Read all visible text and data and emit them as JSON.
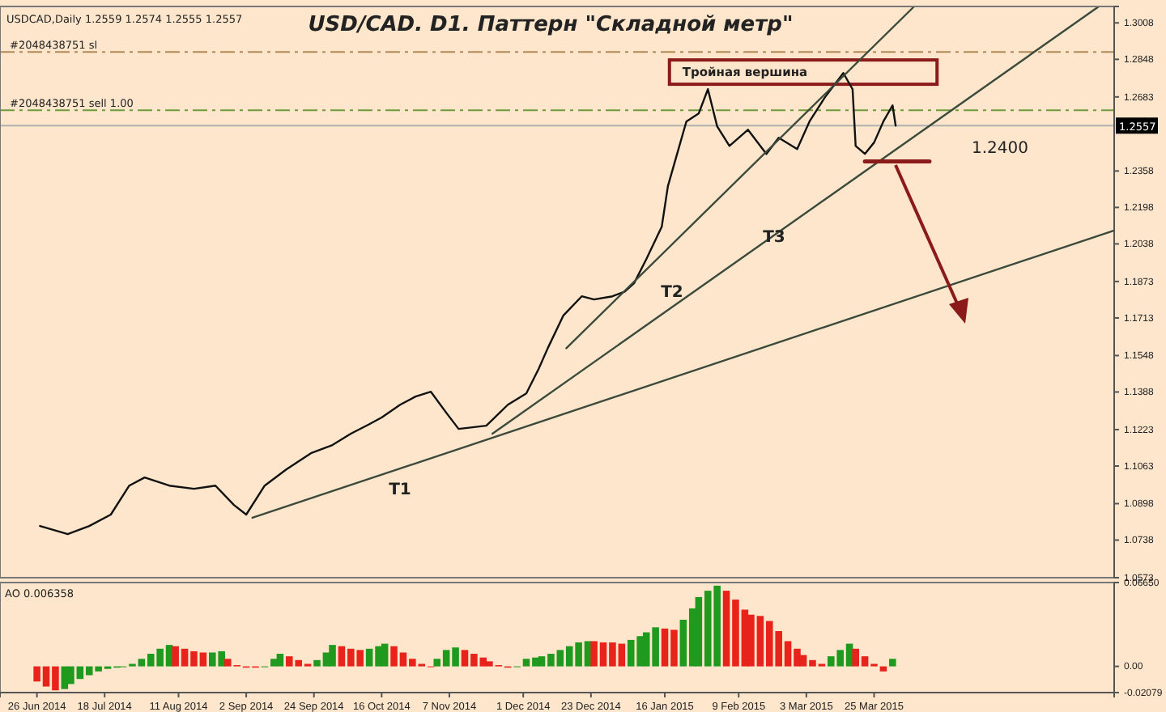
{
  "chart_data": [
    {
      "type": "line",
      "title": "USD/CAD. D1. Паттерн \"Складной метр\"",
      "annotations": [
        "USDCAD,Daily  1.2559 1.2574 1.2555 1.2557",
        "Тройная вершина",
        "T1",
        "T2",
        "T3",
        "1.2400"
      ],
      "xlim": [
        "2014-06-14",
        "2015-06-11"
      ],
      "ylim": [
        1.0573,
        1.308
      ],
      "yticks": [
        1.0573,
        1.0738,
        1.0898,
        1.1063,
        1.1223,
        1.1388,
        1.1548,
        1.1713,
        1.1873,
        1.2038,
        1.2198,
        1.2358,
        1.2683,
        1.2848,
        1.3008
      ],
      "tick_labels": "y",
      "grid": false,
      "ref_lines": [
        {
          "axis": "y",
          "value": 1.288,
          "label": "#2048438751 sl",
          "color": "#b08a5a",
          "line_style": "dashed"
        },
        {
          "axis": "y",
          "value": 1.2625,
          "label": "#2048438751 sell 1.00",
          "color": "#6f9a3c",
          "line_style": "dashed"
        },
        {
          "axis": "y",
          "value": 1.2557,
          "label": "1.2557",
          "color": "#b0b0b0"
        }
      ],
      "series": [
        {
          "color": "#111111",
          "x": [
            "2014-06-27",
            "2014-07-06",
            "2014-07-13",
            "2014-07-20",
            "2014-07-26",
            "2014-07-31",
            "2014-08-08",
            "2014-08-16",
            "2014-08-23",
            "2014-08-29",
            "2014-09-02",
            "2014-09-08",
            "2014-09-15",
            "2014-09-23",
            "2014-09-30",
            "2014-10-06",
            "2014-10-12",
            "2014-10-16",
            "2014-10-22",
            "2014-10-27",
            "2014-11-01",
            "2014-11-06",
            "2014-11-10",
            "2014-11-19",
            "2014-11-26",
            "2014-12-02",
            "2014-12-06",
            "2014-12-09",
            "2014-12-14",
            "2014-12-20",
            "2014-12-24",
            "2014-12-30",
            "2015-01-03",
            "2015-01-06",
            "2015-01-10",
            "2015-01-15",
            "2015-01-17",
            "2015-01-20",
            "2015-01-23",
            "2015-01-27",
            "2015-01-30",
            "2015-02-02",
            "2015-02-06",
            "2015-02-12",
            "2015-02-18",
            "2015-02-22",
            "2015-02-28",
            "2015-03-04",
            "2015-03-09",
            "2015-03-15",
            "2015-03-18",
            "2015-03-19",
            "2015-03-22",
            "2015-03-25",
            "2015-03-28",
            "2015-03-31",
            "2015-04-01"
          ],
          "values": [
            1.08,
            1.0764,
            1.08,
            1.085,
            1.0977,
            1.1013,
            1.0977,
            1.0963,
            1.0977,
            1.0892,
            1.085,
            1.0977,
            1.1048,
            1.1119,
            1.1155,
            1.1205,
            1.1247,
            1.1276,
            1.1332,
            1.1368,
            1.1389,
            1.1297,
            1.1226,
            1.124,
            1.1332,
            1.1382,
            1.1489,
            1.1581,
            1.1723,
            1.1808,
            1.1794,
            1.1808,
            1.1829,
            1.1865,
            1.1971,
            1.2113,
            1.2291,
            1.2433,
            1.2575,
            1.261,
            1.2717,
            1.2554,
            1.2468,
            1.2539,
            1.2433,
            1.2504,
            1.2454,
            1.2575,
            1.2681,
            1.2788,
            1.2717,
            1.2468,
            1.2433,
            1.2483,
            1.2575,
            1.2646,
            1.2557
          ]
        },
        {
          "color": "#3c4a3c",
          "x": [
            "2014-09-04",
            "2015-06-11"
          ],
          "values": [
            1.0836,
            1.2097
          ]
        },
        {
          "color": "#3c4a3c",
          "x": [
            "2014-11-21",
            "2015-06-06"
          ],
          "values": [
            1.1205,
            1.308
          ]
        },
        {
          "color": "#3c4a3c",
          "x": [
            "2014-12-15",
            "2015-04-07"
          ],
          "values": [
            1.158,
            1.308
          ]
        },
        {
          "color": "#8b1a1a",
          "x": [
            "2015-03-22",
            "2015-04-12"
          ],
          "values": [
            1.24,
            1.24
          ]
        }
      ]
    },
    {
      "type": "bar",
      "title": "AO 0.006358",
      "xlim": [
        "2014-06-14",
        "2015-06-11"
      ],
      "ylim": [
        -0.02079,
        0.0665
      ],
      "yticks": [
        {
          "value": -0.02079,
          "label": "-0.02079"
        },
        {
          "value": 0,
          "label": "0.00"
        },
        {
          "value": 0.0665,
          "label": "0.06650"
        }
      ],
      "xticks": [
        {
          "value": "2014-06-26",
          "label": "26 Jun 2014"
        },
        {
          "value": "2014-07-18",
          "label": "18 Jul 2014"
        },
        {
          "value": "2014-08-11",
          "label": "11 Aug 2014"
        },
        {
          "value": "2014-09-02",
          "label": "2 Sep 2014"
        },
        {
          "value": "2014-09-24",
          "label": "24 Sep 2014"
        },
        {
          "value": "2014-10-16",
          "label": "16 Oct 2014"
        },
        {
          "value": "2014-11-07",
          "label": "7 Nov 2014"
        },
        {
          "value": "2014-12-01",
          "label": "1 Dec 2014"
        },
        {
          "value": "2014-12-23",
          "label": "23 Dec 2014"
        },
        {
          "value": "2015-01-16",
          "label": "16 Jan 2015"
        },
        {
          "value": "2015-02-09",
          "label": "9 Feb 2015"
        },
        {
          "value": "2015-03-03",
          "label": "3 Mar 2015"
        },
        {
          "value": "2015-03-25",
          "label": "25 Mar 2015"
        }
      ],
      "grid": false,
      "x": [
        "2014-06-26",
        "2014-06-29",
        "2014-07-02",
        "2014-07-05",
        "2014-07-07",
        "2014-07-10",
        "2014-07-13",
        "2014-07-16",
        "2014-07-19",
        "2014-07-22",
        "2014-07-24",
        "2014-07-27",
        "2014-07-30",
        "2014-08-02",
        "2014-08-05",
        "2014-08-08",
        "2014-08-10",
        "2014-08-13",
        "2014-08-16",
        "2014-08-19",
        "2014-08-22",
        "2014-08-25",
        "2014-08-27",
        "2014-08-30",
        "2014-09-02",
        "2014-09-05",
        "2014-09-08",
        "2014-09-11",
        "2014-09-13",
        "2014-09-16",
        "2014-09-19",
        "2014-09-22",
        "2014-09-25",
        "2014-09-28",
        "2014-09-30",
        "2014-10-03",
        "2014-10-06",
        "2014-10-09",
        "2014-10-12",
        "2014-10-15",
        "2014-10-17",
        "2014-10-20",
        "2014-10-23",
        "2014-10-26",
        "2014-10-29",
        "2014-11-01",
        "2014-11-03",
        "2014-11-06",
        "2014-11-09",
        "2014-11-12",
        "2014-11-15",
        "2014-11-18",
        "2014-11-20",
        "2014-11-23",
        "2014-11-26",
        "2014-11-29",
        "2014-12-02",
        "2014-12-05",
        "2014-12-07",
        "2014-12-10",
        "2014-12-13",
        "2014-12-16",
        "2014-12-19",
        "2014-12-22",
        "2014-12-24",
        "2014-12-27",
        "2014-12-30",
        "2015-01-02",
        "2015-01-05",
        "2015-01-08",
        "2015-01-10",
        "2015-01-13",
        "2015-01-16",
        "2015-01-19",
        "2015-01-22",
        "2015-01-25",
        "2015-01-27",
        "2015-01-30",
        "2015-02-02",
        "2015-02-05",
        "2015-02-08",
        "2015-02-11",
        "2015-02-13",
        "2015-02-16",
        "2015-02-19",
        "2015-02-22",
        "2015-02-25",
        "2015-02-28",
        "2015-03-02",
        "2015-03-05",
        "2015-03-08",
        "2015-03-11",
        "2015-03-14",
        "2015-03-17",
        "2015-03-19",
        "2015-03-22",
        "2015-03-25",
        "2015-03-28",
        "2015-03-31"
      ],
      "values": [
        -0.012,
        -0.016,
        -0.019,
        -0.018,
        -0.014,
        -0.01,
        -0.007,
        -0.004,
        -0.002,
        -0.001,
        0.0,
        0.002,
        0.006,
        0.01,
        0.014,
        0.017,
        0.016,
        0.014,
        0.012,
        0.011,
        0.011,
        0.012,
        0.006,
        0.001,
        -0.001,
        -0.001,
        0.0,
        0.006,
        0.01,
        0.008,
        0.005,
        0.002,
        0.005,
        0.011,
        0.017,
        0.016,
        0.014,
        0.013,
        0.014,
        0.016,
        0.018,
        0.016,
        0.011,
        0.006,
        0.002,
        0.0,
        0.006,
        0.013,
        0.015,
        0.013,
        0.01,
        0.007,
        0.004,
        0.001,
        -0.001,
        0.0,
        0.006,
        0.007,
        0.008,
        0.01,
        0.013,
        0.016,
        0.019,
        0.02,
        0.02,
        0.019,
        0.019,
        0.018,
        0.021,
        0.024,
        0.027,
        0.031,
        0.03,
        0.029,
        0.037,
        0.046,
        0.055,
        0.06,
        0.064,
        0.06,
        0.053,
        0.045,
        0.041,
        0.04,
        0.036,
        0.028,
        0.02,
        0.014,
        0.009,
        0.005,
        0.002,
        0.008,
        0.013,
        0.018,
        0.014,
        0.008,
        0.002,
        -0.004,
        0.006
      ],
      "colors": [
        "#e8231b",
        "#e8231b",
        "#e8231b",
        "#1f9a1f",
        "#1f9a1f",
        "#1f9a1f",
        "#1f9a1f",
        "#1f9a1f",
        "#1f9a1f",
        "#1f9a1f",
        "#1f9a1f",
        "#1f9a1f",
        "#1f9a1f",
        "#1f9a1f",
        "#1f9a1f",
        "#1f9a1f",
        "#e8231b",
        "#e8231b",
        "#e8231b",
        "#e8231b",
        "#1f9a1f",
        "#1f9a1f",
        "#e8231b",
        "#e8231b",
        "#e8231b",
        "#e8231b",
        "#1f9a1f",
        "#1f9a1f",
        "#1f9a1f",
        "#e8231b",
        "#e8231b",
        "#e8231b",
        "#1f9a1f",
        "#1f9a1f",
        "#1f9a1f",
        "#e8231b",
        "#e8231b",
        "#e8231b",
        "#1f9a1f",
        "#1f9a1f",
        "#1f9a1f",
        "#e8231b",
        "#e8231b",
        "#e8231b",
        "#e8231b",
        "#e8231b",
        "#1f9a1f",
        "#1f9a1f",
        "#1f9a1f",
        "#e8231b",
        "#e8231b",
        "#e8231b",
        "#e8231b",
        "#e8231b",
        "#e8231b",
        "#1f9a1f",
        "#1f9a1f",
        "#1f9a1f",
        "#1f9a1f",
        "#1f9a1f",
        "#1f9a1f",
        "#1f9a1f",
        "#1f9a1f",
        "#1f9a1f",
        "#e8231b",
        "#e8231b",
        "#e8231b",
        "#e8231b",
        "#1f9a1f",
        "#1f9a1f",
        "#1f9a1f",
        "#1f9a1f",
        "#e8231b",
        "#e8231b",
        "#1f9a1f",
        "#1f9a1f",
        "#1f9a1f",
        "#1f9a1f",
        "#1f9a1f",
        "#e8231b",
        "#e8231b",
        "#e8231b",
        "#e8231b",
        "#e8231b",
        "#e8231b",
        "#e8231b",
        "#e8231b",
        "#e8231b",
        "#e8231b",
        "#e8231b",
        "#e8231b",
        "#1f9a1f",
        "#1f9a1f",
        "#1f9a1f",
        "#e8231b",
        "#e8231b",
        "#e8231b",
        "#e8231b",
        "#1f9a1f"
      ]
    }
  ]
}
